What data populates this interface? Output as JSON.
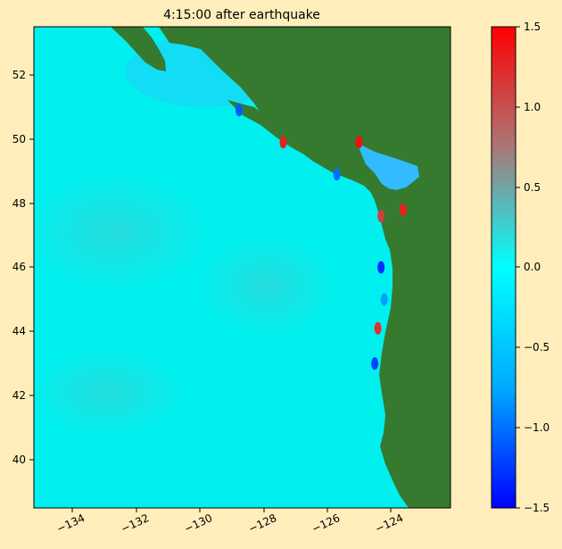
{
  "chart_data": {
    "type": "heatmap",
    "title": "4:15:00 after earthquake",
    "xlabel": "",
    "ylabel": "",
    "xlim": [
      -135.2,
      -122.0
    ],
    "ylim": [
      38.5,
      53.5
    ],
    "x_ticks": [
      -134,
      -132,
      -130,
      -128,
      -126,
      -124
    ],
    "y_ticks": [
      40,
      42,
      44,
      46,
      48,
      50,
      52
    ],
    "x_tick_labels": [
      "−134",
      "−132",
      "−130",
      "−128",
      "−126",
      "−124"
    ],
    "y_tick_labels": [
      "40",
      "42",
      "44",
      "46",
      "48",
      "50",
      "52"
    ],
    "colorbar": {
      "min": -1.5,
      "max": 1.5,
      "ticks": [
        -1.5,
        -1.0,
        -0.5,
        0.0,
        0.5,
        1.0,
        1.5
      ],
      "tick_labels": [
        "−1.5",
        "−1.0",
        "−0.5",
        "0.0",
        "0.5",
        "1.0",
        "1.5"
      ],
      "colors": [
        "#0000ff",
        "#00aaff",
        "#00ffff",
        "#aa7777",
        "#ff0000"
      ]
    },
    "land_color": "#367a30",
    "ocean_color": "#00f0f0",
    "grid": false,
    "annotations": [
      {
        "lon": -127.3,
        "lat": 49.9,
        "value": 1.3
      },
      {
        "lon": -124.9,
        "lat": 49.9,
        "value": 1.4
      },
      {
        "lon": -124.2,
        "lat": 47.6,
        "value": 1.1
      },
      {
        "lon": -123.5,
        "lat": 47.8,
        "value": 1.3
      },
      {
        "lon": -124.2,
        "lat": 46.0,
        "value": -1.3
      },
      {
        "lon": -124.3,
        "lat": 44.1,
        "value": 1.2
      },
      {
        "lon": -124.4,
        "lat": 43.0,
        "value": -1.2
      },
      {
        "lon": -128.7,
        "lat": 50.9,
        "value": -1.1
      },
      {
        "lon": -125.6,
        "lat": 48.9,
        "value": -1.0
      },
      {
        "lon": -124.1,
        "lat": 45.0,
        "value": -0.8
      }
    ]
  }
}
